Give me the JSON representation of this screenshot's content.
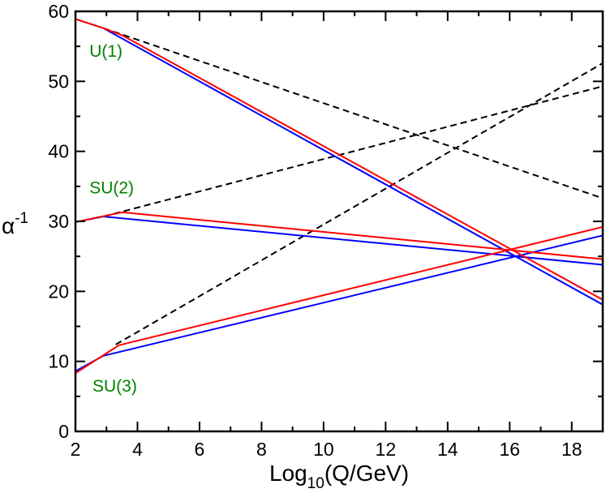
{
  "chart_data": {
    "type": "line",
    "xlabel": {
      "main": "Log",
      "sub": "10",
      "rest": "(Q/GeV)"
    },
    "ylabel": {
      "main": "α",
      "sup": "-1"
    },
    "xlim": [
      2,
      19
    ],
    "ylim": [
      0,
      60
    ],
    "xticks": [
      2,
      4,
      6,
      8,
      10,
      12,
      14,
      16,
      18
    ],
    "yticks": [
      0,
      10,
      20,
      30,
      40,
      50,
      60
    ],
    "grid": false,
    "colors": {
      "standard_model": "#000000",
      "mssm_1": "#0000ff",
      "mssm_2": "#ff0000",
      "labels": "#008000"
    },
    "series_labels": [
      {
        "text": "U(1)",
        "x": 2.45,
        "y": 53.5
      },
      {
        "text": "SU(2)",
        "x": 2.45,
        "y": 34.0
      },
      {
        "text": "SU(3)",
        "x": 2.55,
        "y": 5.7
      }
    ],
    "series": [
      {
        "name": "U(1) SM",
        "style": "dashed",
        "color": "#000000",
        "points": [
          [
            2.9,
            57.6
          ],
          [
            19,
            33.3
          ]
        ]
      },
      {
        "name": "SU(2) SM",
        "style": "dashed",
        "color": "#000000",
        "points": [
          [
            2.9,
            30.7
          ],
          [
            19,
            49.3
          ]
        ]
      },
      {
        "name": "SU(3) SM",
        "style": "dashed",
        "color": "#000000",
        "points": [
          [
            3.3,
            12.4
          ],
          [
            19,
            52.6
          ]
        ]
      },
      {
        "name": "U(1) MSSM blue",
        "style": "solid",
        "color": "#0000ff",
        "points": [
          [
            2,
            58.9
          ],
          [
            2.9,
            57.6
          ],
          [
            19,
            18.1
          ]
        ]
      },
      {
        "name": "SU(2) MSSM blue",
        "style": "solid",
        "color": "#0000ff",
        "points": [
          [
            2,
            29.9
          ],
          [
            2.9,
            30.7
          ],
          [
            19,
            23.8
          ]
        ]
      },
      {
        "name": "SU(3) MSSM blue",
        "style": "solid",
        "color": "#0000ff",
        "points": [
          [
            2,
            8.6
          ],
          [
            2.9,
            10.8
          ],
          [
            19,
            28.0
          ]
        ]
      },
      {
        "name": "U(1) MSSM red",
        "style": "solid",
        "color": "#ff0000",
        "points": [
          [
            2,
            58.9
          ],
          [
            2.9,
            57.6
          ],
          [
            3.5,
            56.6
          ],
          [
            19,
            18.8
          ]
        ]
      },
      {
        "name": "SU(2) MSSM red",
        "style": "solid",
        "color": "#ff0000",
        "points": [
          [
            2,
            29.9
          ],
          [
            3.5,
            31.3
          ],
          [
            19,
            24.6
          ]
        ]
      },
      {
        "name": "SU(3) MSSM red",
        "style": "solid",
        "color": "#ff0000",
        "points": [
          [
            2,
            8.3
          ],
          [
            3.4,
            12.3
          ],
          [
            19,
            29.2
          ]
        ]
      }
    ]
  }
}
